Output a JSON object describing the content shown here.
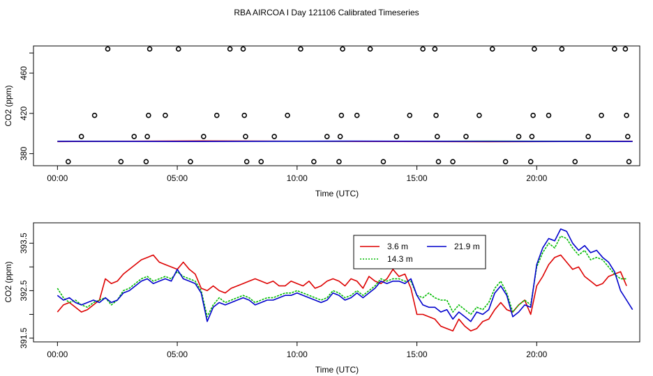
{
  "page_title": "RBA AIRCOA I  Day 121106  Calibrated Timeseries",
  "colors": {
    "red": "#dd0000",
    "green": "#00bb00",
    "blue": "#0000cc",
    "black": "#000000"
  },
  "chart_data": [
    {
      "type": "scatter",
      "title": "",
      "xlabel": "Time (UTC)",
      "ylabel": "CO2 (ppm)",
      "xlim": [
        -1.0,
        24.3
      ],
      "ylim": [
        368,
        487
      ],
      "x_tick_values": [
        0,
        5,
        10,
        15,
        20
      ],
      "x_tick_labels": [
        "00:00",
        "05:00",
        "10:00",
        "15:00",
        "20:00"
      ],
      "y_tick_values": [
        380,
        420,
        460
      ],
      "y_tick_labels": [
        "380",
        "420",
        "460"
      ],
      "grid": false,
      "series": [
        {
          "name": "",
          "kind": "points",
          "color": "#000000",
          "points": [
            [
              0.45,
              372
            ],
            [
              1.0,
              397
            ],
            [
              1.55,
              418
            ],
            [
              2.1,
              484
            ],
            [
              2.65,
              372
            ],
            [
              3.2,
              397
            ],
            [
              3.75,
              397
            ],
            [
              3.7,
              372
            ],
            [
              3.8,
              418
            ],
            [
              3.85,
              484
            ],
            [
              4.5,
              418
            ],
            [
              5.05,
              484
            ],
            [
              5.55,
              372
            ],
            [
              6.1,
              397
            ],
            [
              6.65,
              418
            ],
            [
              7.2,
              484
            ],
            [
              7.75,
              484
            ],
            [
              7.8,
              418
            ],
            [
              7.85,
              397
            ],
            [
              7.9,
              372
            ],
            [
              8.5,
              372
            ],
            [
              9.05,
              397
            ],
            [
              9.6,
              418
            ],
            [
              10.15,
              484
            ],
            [
              10.7,
              372
            ],
            [
              11.25,
              397
            ],
            [
              11.75,
              372
            ],
            [
              11.8,
              397
            ],
            [
              11.85,
              418
            ],
            [
              11.9,
              484
            ],
            [
              12.5,
              418
            ],
            [
              13.05,
              484
            ],
            [
              13.6,
              372
            ],
            [
              14.15,
              397
            ],
            [
              14.7,
              418
            ],
            [
              15.25,
              484
            ],
            [
              15.75,
              484
            ],
            [
              15.8,
              418
            ],
            [
              15.85,
              397
            ],
            [
              15.9,
              372
            ],
            [
              16.5,
              372
            ],
            [
              17.05,
              397
            ],
            [
              17.6,
              418
            ],
            [
              18.15,
              484
            ],
            [
              18.7,
              372
            ],
            [
              19.25,
              397
            ],
            [
              19.75,
              372
            ],
            [
              19.8,
              397
            ],
            [
              19.85,
              418
            ],
            [
              19.9,
              484
            ],
            [
              20.5,
              418
            ],
            [
              21.05,
              484
            ],
            [
              21.6,
              372
            ],
            [
              22.15,
              397
            ],
            [
              22.7,
              418
            ],
            [
              23.25,
              484
            ],
            [
              23.7,
              484
            ],
            [
              23.75,
              418
            ],
            [
              23.8,
              397
            ],
            [
              23.85,
              372
            ]
          ]
        },
        {
          "name": "",
          "kind": "line",
          "color": "#00bb00",
          "x": [
            0,
            6,
            12,
            18,
            24
          ],
          "y": [
            392.2,
            392.4,
            392.3,
            392.4,
            392.2
          ]
        },
        {
          "name": "",
          "kind": "line",
          "color": "#dd0000",
          "x": [
            0,
            6,
            12,
            18,
            24
          ],
          "y": [
            392.0,
            392.6,
            392.2,
            391.9,
            392.3
          ]
        },
        {
          "name": "",
          "kind": "line",
          "color": "#0000cc",
          "x": [
            0,
            6,
            12,
            18,
            24
          ],
          "y": [
            392.3,
            392.1,
            392.4,
            392.2,
            392.1
          ]
        }
      ]
    },
    {
      "type": "line",
      "title": "",
      "xlabel": "Time (UTC)",
      "ylabel": "CO2 (ppm)",
      "xlim": [
        -1.0,
        24.3
      ],
      "ylim": [
        391.42,
        393.93
      ],
      "x_tick_values": [
        0,
        5,
        10,
        15,
        20
      ],
      "x_tick_labels": [
        "00:00",
        "05:00",
        "10:00",
        "15:00",
        "20:00"
      ],
      "y_tick_values": [
        391.5,
        392.5,
        393.5
      ],
      "y_tick_labels": [
        "391.5",
        "392.5",
        "393.5"
      ],
      "grid": false,
      "legend": {
        "placement": "top-right",
        "entries": [
          "3.6 m",
          "14.3 m",
          "21.9 m"
        ]
      },
      "series": [
        {
          "name": "3.6 m",
          "color": "#dd0000",
          "x": [
            0,
            0.25,
            0.5,
            0.75,
            1,
            1.25,
            1.5,
            1.75,
            2,
            2.25,
            2.5,
            2.75,
            3,
            3.25,
            3.5,
            3.75,
            4,
            4.25,
            4.5,
            4.75,
            5,
            5.25,
            5.5,
            5.75,
            6,
            6.25,
            6.5,
            6.75,
            7,
            7.25,
            7.5,
            7.75,
            8,
            8.25,
            8.5,
            8.75,
            9,
            9.25,
            9.5,
            9.75,
            10,
            10.25,
            10.5,
            10.75,
            11,
            11.25,
            11.5,
            11.75,
            12,
            12.25,
            12.5,
            12.75,
            13,
            13.25,
            13.5,
            13.75,
            14,
            14.25,
            14.5,
            14.75,
            15,
            15.25,
            15.5,
            15.75,
            16,
            16.25,
            16.5,
            16.75,
            17,
            17.25,
            17.5,
            17.75,
            18,
            18.25,
            18.5,
            18.75,
            19,
            19.25,
            19.5,
            19.75,
            20,
            20.25,
            20.5,
            20.75,
            21,
            21.25,
            21.5,
            21.75,
            22,
            22.25,
            22.5,
            22.75,
            23,
            23.25,
            23.5,
            23.75
          ],
          "y": [
            392.05,
            392.2,
            392.25,
            392.15,
            392.05,
            392.1,
            392.2,
            392.3,
            392.75,
            392.65,
            392.7,
            392.85,
            392.95,
            393.05,
            393.15,
            393.2,
            393.25,
            393.1,
            393.05,
            393.0,
            392.95,
            393.1,
            392.95,
            392.85,
            392.55,
            392.5,
            392.6,
            392.5,
            392.45,
            392.55,
            392.6,
            392.65,
            392.7,
            392.75,
            392.7,
            392.65,
            392.7,
            392.6,
            392.6,
            392.7,
            392.65,
            392.6,
            392.7,
            392.55,
            392.6,
            392.7,
            392.75,
            392.7,
            392.6,
            392.75,
            392.7,
            392.55,
            392.8,
            392.7,
            392.65,
            392.75,
            392.95,
            392.8,
            392.85,
            392.55,
            392.0,
            392.0,
            391.95,
            391.9,
            391.75,
            391.7,
            391.65,
            391.9,
            391.75,
            391.65,
            391.7,
            391.85,
            391.9,
            392.1,
            392.25,
            392.1,
            392.05,
            392.2,
            392.3,
            392.0,
            392.6,
            392.8,
            393.05,
            393.2,
            393.25,
            393.1,
            392.95,
            393.0,
            392.8,
            392.7,
            392.6,
            392.65,
            392.8,
            392.85,
            392.9,
            392.6
          ]
        },
        {
          "name": "14.3 m",
          "color": "#00bb00",
          "x": [
            0,
            0.25,
            0.5,
            0.75,
            1,
            1.25,
            1.5,
            1.75,
            2,
            2.25,
            2.5,
            2.75,
            3,
            3.25,
            3.5,
            3.75,
            4,
            4.25,
            4.5,
            4.75,
            5,
            5.25,
            5.5,
            5.75,
            6,
            6.25,
            6.5,
            6.75,
            7,
            7.25,
            7.5,
            7.75,
            8,
            8.25,
            8.5,
            8.75,
            9,
            9.25,
            9.5,
            9.75,
            10,
            10.25,
            10.5,
            10.75,
            11,
            11.25,
            11.5,
            11.75,
            12,
            12.25,
            12.5,
            12.75,
            13,
            13.25,
            13.5,
            13.75,
            14,
            14.25,
            14.5,
            14.75,
            15,
            15.25,
            15.5,
            15.75,
            16,
            16.25,
            16.5,
            16.75,
            17,
            17.25,
            17.5,
            17.75,
            18,
            18.25,
            18.5,
            18.75,
            19,
            19.25,
            19.5,
            19.75,
            20,
            20.25,
            20.5,
            20.75,
            21,
            21.25,
            21.5,
            21.75,
            22,
            22.25,
            22.5,
            22.75,
            23,
            23.25,
            23.5,
            23.75
          ],
          "y": [
            392.55,
            392.35,
            392.25,
            392.3,
            392.2,
            392.15,
            392.25,
            392.3,
            392.35,
            392.2,
            392.3,
            392.5,
            392.55,
            392.65,
            392.75,
            392.8,
            392.7,
            392.75,
            392.8,
            392.75,
            392.9,
            392.8,
            392.75,
            392.7,
            392.5,
            391.95,
            392.2,
            392.35,
            392.25,
            392.3,
            392.35,
            392.4,
            392.35,
            392.25,
            392.3,
            392.35,
            392.35,
            392.4,
            392.45,
            392.45,
            392.5,
            392.45,
            392.4,
            392.35,
            392.3,
            392.35,
            392.5,
            392.45,
            392.35,
            392.4,
            392.5,
            392.4,
            392.5,
            392.6,
            392.75,
            392.7,
            392.75,
            392.75,
            392.7,
            392.7,
            392.4,
            392.35,
            392.45,
            392.35,
            392.3,
            392.3,
            392.05,
            392.2,
            392.1,
            392.0,
            392.15,
            392.1,
            392.25,
            392.55,
            392.7,
            392.45,
            392.05,
            392.2,
            392.3,
            392.2,
            393.0,
            393.3,
            393.5,
            393.4,
            393.65,
            393.6,
            393.4,
            393.25,
            393.35,
            393.15,
            393.2,
            393.15,
            393.0,
            392.85,
            392.75,
            392.75
          ]
        },
        {
          "name": "21.9 m",
          "color": "#0000cc",
          "x": [
            0,
            0.25,
            0.5,
            0.75,
            1,
            1.25,
            1.5,
            1.75,
            2,
            2.25,
            2.5,
            2.75,
            3,
            3.25,
            3.5,
            3.75,
            4,
            4.25,
            4.5,
            4.75,
            5,
            5.25,
            5.5,
            5.75,
            6,
            6.25,
            6.5,
            6.75,
            7,
            7.25,
            7.5,
            7.75,
            8,
            8.25,
            8.5,
            8.75,
            9,
            9.25,
            9.5,
            9.75,
            10,
            10.25,
            10.5,
            10.75,
            11,
            11.25,
            11.5,
            11.75,
            12,
            12.25,
            12.5,
            12.75,
            13,
            13.25,
            13.5,
            13.75,
            14,
            14.25,
            14.5,
            14.75,
            15,
            15.25,
            15.5,
            15.75,
            16,
            16.25,
            16.5,
            16.75,
            17,
            17.25,
            17.5,
            17.75,
            18,
            18.25,
            18.5,
            18.75,
            19,
            19.25,
            19.5,
            19.75,
            20,
            20.25,
            20.5,
            20.75,
            21,
            21.25,
            21.5,
            21.75,
            22,
            22.25,
            22.5,
            22.75,
            23,
            23.25,
            23.5,
            23.75,
            24
          ],
          "y": [
            392.4,
            392.3,
            392.35,
            392.25,
            392.2,
            392.25,
            392.3,
            392.25,
            392.35,
            392.25,
            392.3,
            392.45,
            392.5,
            392.6,
            392.7,
            392.75,
            392.65,
            392.7,
            392.75,
            392.7,
            392.95,
            392.75,
            392.7,
            392.65,
            392.45,
            391.85,
            392.15,
            392.25,
            392.2,
            392.25,
            392.3,
            392.35,
            392.3,
            392.2,
            392.25,
            392.3,
            392.3,
            392.35,
            392.4,
            392.4,
            392.45,
            392.4,
            392.35,
            392.3,
            392.25,
            392.3,
            392.45,
            392.4,
            392.3,
            392.35,
            392.45,
            392.35,
            392.45,
            392.55,
            392.7,
            392.65,
            392.7,
            392.7,
            392.65,
            392.75,
            392.4,
            392.2,
            392.15,
            392.15,
            392.05,
            392.1,
            391.9,
            392.05,
            391.95,
            391.85,
            392.05,
            392.0,
            392.1,
            392.45,
            392.6,
            392.4,
            391.95,
            392.05,
            392.2,
            392.15,
            393.05,
            393.4,
            393.6,
            393.55,
            393.8,
            393.75,
            393.5,
            393.35,
            393.45,
            393.3,
            393.35,
            393.2,
            393.1,
            392.9,
            392.5,
            392.3,
            392.1
          ]
        }
      ]
    }
  ]
}
